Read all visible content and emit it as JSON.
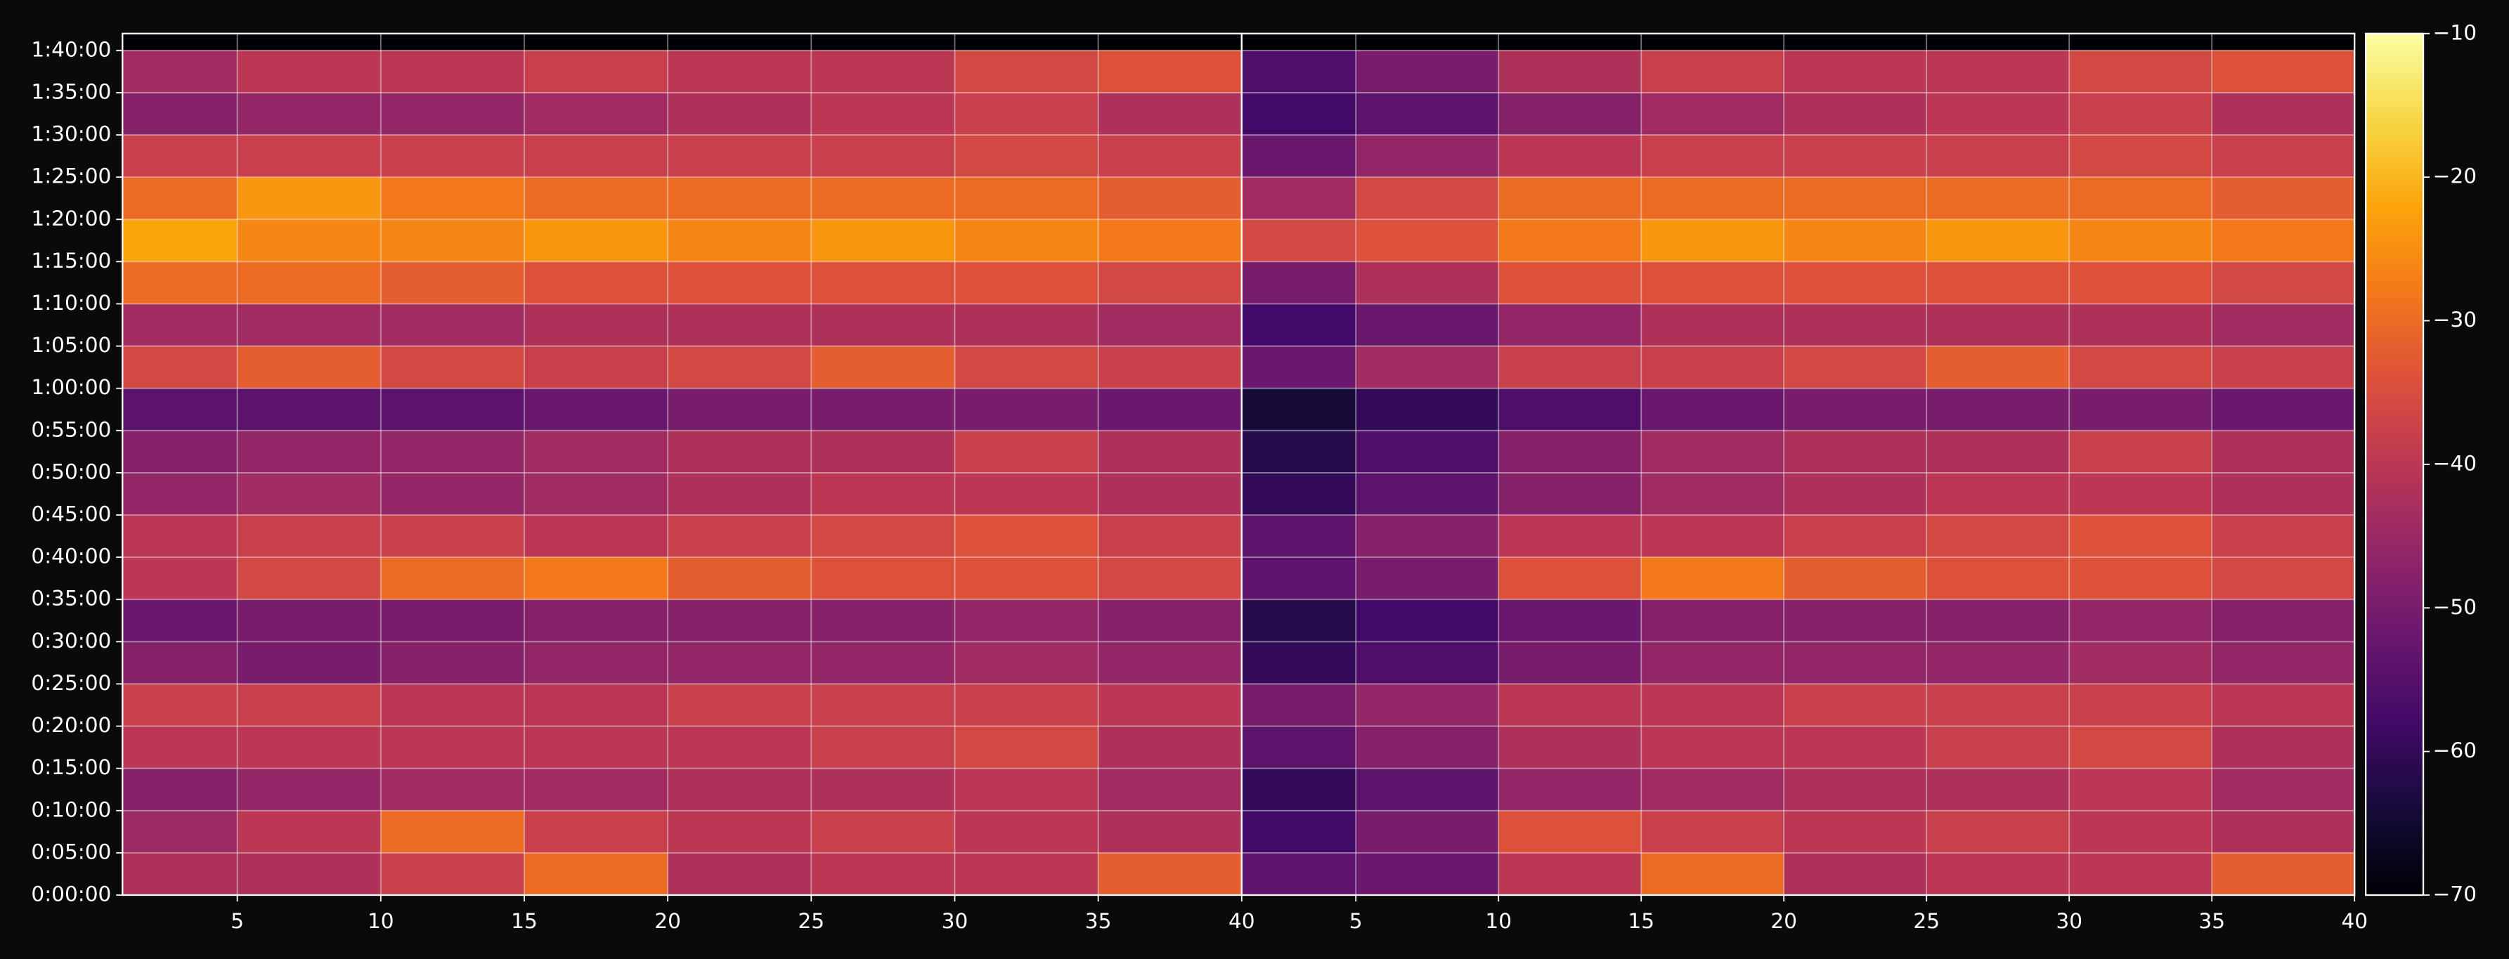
{
  "chart_data": {
    "type": "heatmap",
    "colormap": "inferno",
    "clim": [
      -70,
      -10
    ],
    "cticks": [
      {
        "value": -70,
        "label": "−70"
      },
      {
        "value": -60,
        "label": "−60"
      },
      {
        "value": -50,
        "label": "−50"
      },
      {
        "value": -40,
        "label": "−40"
      },
      {
        "value": -30,
        "label": "−30"
      },
      {
        "value": -20,
        "label": "−20"
      },
      {
        "value": -10,
        "label": "−10"
      }
    ],
    "grid": true,
    "ylim": [
      0,
      102
    ],
    "yticks": [
      {
        "value": 0,
        "label": "0:00:00"
      },
      {
        "value": 5,
        "label": "0:05:00"
      },
      {
        "value": 10,
        "label": "0:10:00"
      },
      {
        "value": 15,
        "label": "0:15:00"
      },
      {
        "value": 20,
        "label": "0:20:00"
      },
      {
        "value": 25,
        "label": "0:25:00"
      },
      {
        "value": 30,
        "label": "0:30:00"
      },
      {
        "value": 35,
        "label": "0:35:00"
      },
      {
        "value": 40,
        "label": "0:40:00"
      },
      {
        "value": 45,
        "label": "0:45:00"
      },
      {
        "value": 50,
        "label": "0:50:00"
      },
      {
        "value": 55,
        "label": "0:55:00"
      },
      {
        "value": 60,
        "label": "1:00:00"
      },
      {
        "value": 65,
        "label": "1:05:00"
      },
      {
        "value": 70,
        "label": "1:10:00"
      },
      {
        "value": 75,
        "label": "1:15:00"
      },
      {
        "value": 80,
        "label": "1:20:00"
      },
      {
        "value": 85,
        "label": "1:25:00"
      },
      {
        "value": 90,
        "label": "1:30:00"
      },
      {
        "value": 95,
        "label": "1:35:00"
      },
      {
        "value": 100,
        "label": "1:40:00"
      }
    ],
    "ybins": [
      0,
      5,
      10,
      15,
      20,
      25,
      30,
      35,
      40,
      45,
      50,
      55,
      60,
      65,
      70,
      75,
      80,
      85,
      90,
      95,
      100
    ],
    "xbins": [
      1,
      5,
      10,
      15,
      20,
      25,
      30,
      35,
      40
    ],
    "panels": [
      {
        "xlim": [
          1,
          40
        ],
        "xticks": [
          5,
          10,
          15,
          20,
          25,
          30,
          35,
          40
        ],
        "values": [
          [
            -42,
            -42,
            -38,
            -30,
            -42,
            -40,
            -40,
            -32
          ],
          [
            -45,
            -40,
            -30,
            -38,
            -40,
            -38,
            -40,
            -42
          ],
          [
            -48,
            -46,
            -44,
            -44,
            -42,
            -42,
            -40,
            -44
          ],
          [
            -40,
            -40,
            -40,
            -40,
            -40,
            -38,
            -36,
            -42
          ],
          [
            -38,
            -38,
            -40,
            -40,
            -38,
            -38,
            -38,
            -40
          ],
          [
            -48,
            -50,
            -48,
            -46,
            -46,
            -46,
            -44,
            -46
          ],
          [
            -52,
            -50,
            -50,
            -48,
            -48,
            -48,
            -46,
            -48
          ],
          [
            -40,
            -36,
            -30,
            -28,
            -32,
            -34,
            -34,
            -36
          ],
          [
            -40,
            -38,
            -38,
            -40,
            -38,
            -36,
            -34,
            -38
          ],
          [
            -46,
            -44,
            -46,
            -44,
            -42,
            -40,
            -40,
            -42
          ],
          [
            -48,
            -46,
            -46,
            -44,
            -42,
            -42,
            -38,
            -42
          ],
          [
            -54,
            -54,
            -54,
            -52,
            -50,
            -50,
            -50,
            -52
          ],
          [
            -36,
            -32,
            -36,
            -38,
            -36,
            -32,
            -36,
            -38
          ],
          [
            -44,
            -44,
            -44,
            -42,
            -42,
            -42,
            -42,
            -44
          ],
          [
            -30,
            -30,
            -32,
            -34,
            -34,
            -34,
            -34,
            -36
          ],
          [
            -22,
            -26,
            -26,
            -24,
            -26,
            -24,
            -26,
            -28
          ],
          [
            -30,
            -24,
            -28,
            -30,
            -30,
            -30,
            -30,
            -32
          ],
          [
            -38,
            -38,
            -38,
            -38,
            -38,
            -38,
            -36,
            -38
          ],
          [
            -48,
            -46,
            -46,
            -44,
            -42,
            -40,
            -38,
            -42
          ],
          [
            -44,
            -40,
            -40,
            -38,
            -40,
            -40,
            -36,
            -34
          ]
        ]
      },
      {
        "xlim": [
          1,
          40
        ],
        "xticks": [
          5,
          10,
          15,
          20,
          25,
          30,
          35,
          40
        ],
        "values": [
          [
            -54,
            -52,
            -40,
            -30,
            -42,
            -40,
            -40,
            -32
          ],
          [
            -58,
            -50,
            -34,
            -38,
            -40,
            -38,
            -40,
            -42
          ],
          [
            -60,
            -54,
            -46,
            -44,
            -42,
            -42,
            -40,
            -44
          ],
          [
            -54,
            -48,
            -42,
            -40,
            -40,
            -38,
            -36,
            -42
          ],
          [
            -50,
            -46,
            -40,
            -40,
            -38,
            -38,
            -38,
            -40
          ],
          [
            -60,
            -56,
            -50,
            -46,
            -46,
            -46,
            -44,
            -46
          ],
          [
            -62,
            -58,
            -52,
            -48,
            -48,
            -48,
            -46,
            -48
          ],
          [
            -54,
            -50,
            -34,
            -28,
            -32,
            -34,
            -34,
            -36
          ],
          [
            -54,
            -48,
            -40,
            -40,
            -38,
            -36,
            -34,
            -38
          ],
          [
            -60,
            -54,
            -48,
            -44,
            -42,
            -40,
            -40,
            -42
          ],
          [
            -62,
            -56,
            -48,
            -44,
            -42,
            -42,
            -38,
            -42
          ],
          [
            -64,
            -60,
            -56,
            -52,
            -50,
            -50,
            -50,
            -52
          ],
          [
            -52,
            -44,
            -38,
            -38,
            -36,
            -32,
            -36,
            -38
          ],
          [
            -58,
            -52,
            -46,
            -42,
            -42,
            -42,
            -42,
            -44
          ],
          [
            -50,
            -42,
            -34,
            -34,
            -34,
            -34,
            -34,
            -36
          ],
          [
            -36,
            -34,
            -28,
            -24,
            -26,
            -24,
            -26,
            -28
          ],
          [
            -44,
            -36,
            -30,
            -30,
            -30,
            -30,
            -30,
            -32
          ],
          [
            -52,
            -46,
            -40,
            -38,
            -38,
            -38,
            -36,
            -38
          ],
          [
            -58,
            -54,
            -48,
            -44,
            -42,
            -40,
            -38,
            -42
          ],
          [
            -56,
            -50,
            -42,
            -38,
            -40,
            -40,
            -36,
            -34
          ]
        ]
      }
    ]
  }
}
